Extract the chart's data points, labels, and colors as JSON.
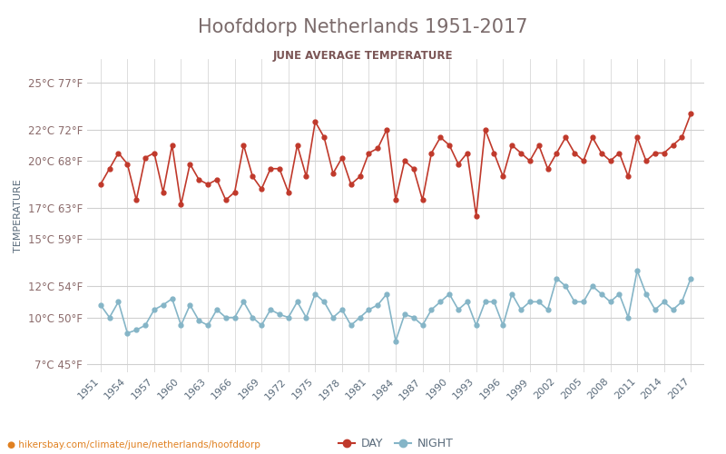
{
  "title": "Hoofddorp Netherlands 1951-2017",
  "subtitle": "JUNE AVERAGE TEMPERATURE",
  "ylabel": "TEMPERATURE",
  "xlabel_url": "hikersbay.com/climate/june/netherlands/hoofddorp",
  "years": [
    1951,
    1952,
    1953,
    1954,
    1955,
    1956,
    1957,
    1958,
    1959,
    1960,
    1961,
    1962,
    1963,
    1964,
    1965,
    1966,
    1967,
    1968,
    1969,
    1970,
    1971,
    1972,
    1973,
    1974,
    1975,
    1976,
    1977,
    1978,
    1979,
    1980,
    1981,
    1982,
    1983,
    1984,
    1985,
    1986,
    1987,
    1988,
    1989,
    1990,
    1991,
    1992,
    1993,
    1994,
    1995,
    1996,
    1997,
    1998,
    1999,
    2000,
    2001,
    2002,
    2003,
    2004,
    2005,
    2006,
    2007,
    2008,
    2009,
    2010,
    2011,
    2012,
    2013,
    2014,
    2015,
    2016,
    2017
  ],
  "day_temps": [
    18.5,
    19.5,
    20.5,
    19.8,
    17.5,
    20.2,
    20.5,
    18.0,
    21.0,
    17.2,
    19.8,
    18.8,
    18.5,
    18.8,
    17.5,
    18.0,
    21.0,
    19.0,
    18.2,
    19.5,
    19.5,
    18.0,
    21.0,
    19.0,
    22.5,
    21.5,
    19.2,
    20.2,
    18.5,
    19.0,
    20.5,
    20.8,
    22.0,
    17.5,
    20.0,
    19.5,
    17.5,
    20.5,
    21.5,
    21.0,
    19.8,
    20.5,
    16.5,
    22.0,
    20.5,
    19.0,
    21.0,
    20.5,
    20.0,
    21.0,
    19.5,
    20.5,
    21.5,
    20.5,
    20.0,
    21.5,
    20.5,
    20.0,
    20.5,
    19.0,
    21.5,
    20.0,
    20.5,
    20.5,
    21.0,
    21.5,
    23.0
  ],
  "night_temps": [
    10.8,
    10.0,
    11.0,
    9.0,
    9.2,
    9.5,
    10.5,
    10.8,
    11.2,
    9.5,
    10.8,
    9.8,
    9.5,
    10.5,
    10.0,
    10.0,
    11.0,
    10.0,
    9.5,
    10.5,
    10.2,
    10.0,
    11.0,
    10.0,
    11.5,
    11.0,
    10.0,
    10.5,
    9.5,
    10.0,
    10.5,
    10.8,
    11.5,
    8.5,
    10.2,
    10.0,
    9.5,
    10.5,
    11.0,
    11.5,
    10.5,
    11.0,
    9.5,
    11.0,
    11.0,
    9.5,
    11.5,
    10.5,
    11.0,
    11.0,
    10.5,
    12.5,
    12.0,
    11.0,
    11.0,
    12.0,
    11.5,
    11.0,
    11.5,
    10.0,
    13.0,
    11.5,
    10.5,
    11.0,
    10.5,
    11.0,
    12.5
  ],
  "day_color": "#c0392b",
  "night_color": "#85b5c7",
  "title_color": "#7b6b6b",
  "subtitle_color": "#7b5555",
  "axis_label_color": "#5a6b7b",
  "tick_color": "#8b6b6b",
  "grid_color": "#d0d0d0",
  "yticks_c": [
    7,
    10,
    12,
    15,
    17,
    20,
    22,
    25
  ],
  "yticks_f": [
    45,
    50,
    54,
    59,
    63,
    68,
    72,
    77
  ],
  "ylim": [
    6.5,
    26.5
  ],
  "background_color": "#ffffff",
  "legend_night": "NIGHT",
  "legend_day": "DAY"
}
